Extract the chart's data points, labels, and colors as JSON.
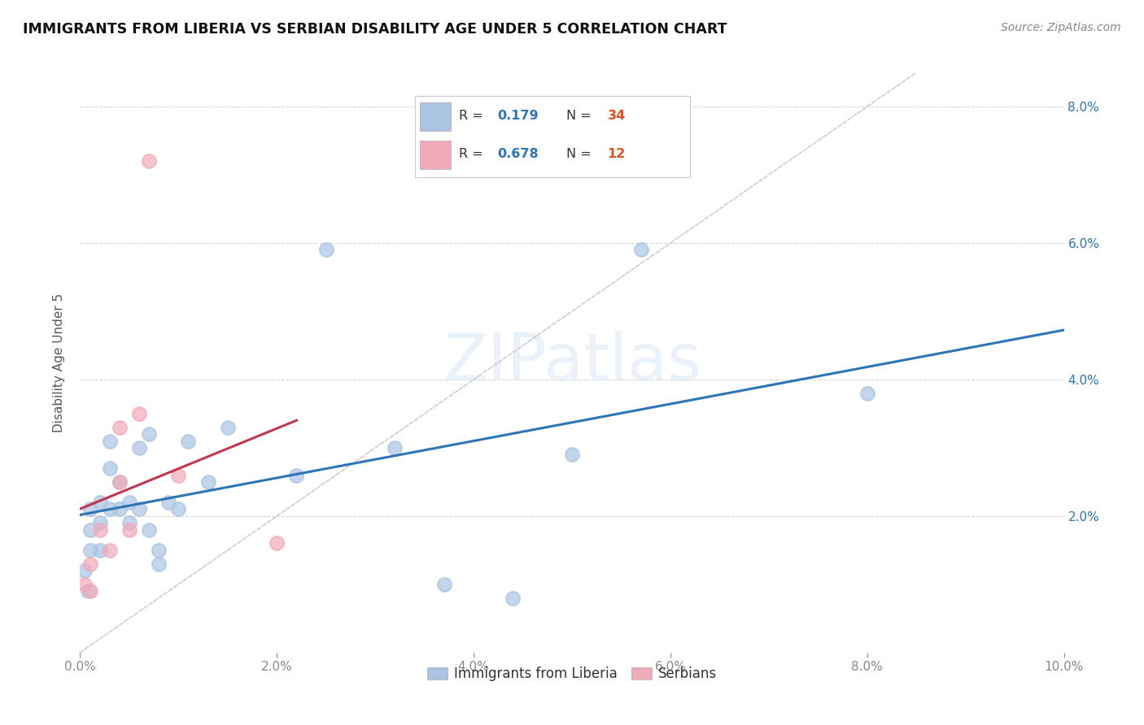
{
  "title": "IMMIGRANTS FROM LIBERIA VS SERBIAN DISABILITY AGE UNDER 5 CORRELATION CHART",
  "source": "Source: ZipAtlas.com",
  "ylabel": "Disability Age Under 5",
  "xlim": [
    0.0,
    0.1
  ],
  "ylim": [
    0.0,
    0.085
  ],
  "xticks": [
    0.0,
    0.02,
    0.04,
    0.06,
    0.08,
    0.1
  ],
  "yticks": [
    0.0,
    0.02,
    0.04,
    0.06,
    0.08
  ],
  "xticklabels": [
    "0.0%",
    "2.0%",
    "4.0%",
    "6.0%",
    "8.0%",
    "10.0%"
  ],
  "yticklabels_right": [
    "",
    "2.0%",
    "4.0%",
    "6.0%",
    "8.0%"
  ],
  "liberia_color": "#aac4e2",
  "serbian_color": "#f0aaba",
  "liberia_line_color": "#2e75b6",
  "serbian_line_color": "#c0384e",
  "liberia_x": [
    0.0005,
    0.0008,
    0.001,
    0.001,
    0.001,
    0.002,
    0.002,
    0.002,
    0.003,
    0.003,
    0.003,
    0.004,
    0.004,
    0.005,
    0.005,
    0.006,
    0.006,
    0.007,
    0.007,
    0.008,
    0.008,
    0.009,
    0.01,
    0.011,
    0.013,
    0.015,
    0.022,
    0.025,
    0.032,
    0.037,
    0.044,
    0.05,
    0.057,
    0.08
  ],
  "liberia_y": [
    0.012,
    0.009,
    0.021,
    0.018,
    0.015,
    0.022,
    0.019,
    0.015,
    0.031,
    0.027,
    0.021,
    0.025,
    0.021,
    0.022,
    0.019,
    0.03,
    0.021,
    0.032,
    0.018,
    0.015,
    0.013,
    0.022,
    0.021,
    0.031,
    0.025,
    0.033,
    0.026,
    0.059,
    0.03,
    0.01,
    0.008,
    0.029,
    0.059,
    0.038
  ],
  "serbian_x": [
    0.0005,
    0.001,
    0.001,
    0.002,
    0.003,
    0.004,
    0.004,
    0.005,
    0.006,
    0.007,
    0.01,
    0.02
  ],
  "serbian_y": [
    0.01,
    0.013,
    0.009,
    0.018,
    0.015,
    0.025,
    0.033,
    0.018,
    0.035,
    0.072,
    0.026,
    0.016
  ],
  "legend_R1": "0.179",
  "legend_N1": "34",
  "legend_R2": "0.678",
  "legend_N2": "12",
  "watermark": "ZIPatlas",
  "legend_label1": "Immigrants from Liberia",
  "legend_label2": "Serbians"
}
